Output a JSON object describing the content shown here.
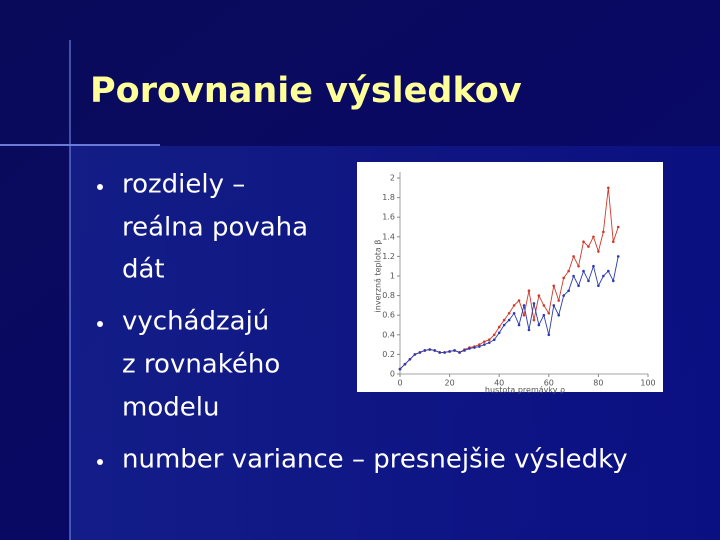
{
  "title": "Porovnanie výsledkov",
  "bullets": [
    [
      "rozdiely –",
      "reálna povaha",
      "dát"
    ],
    [
      "vychádzajú",
      "z rovnakého",
      "modelu"
    ],
    [
      "number variance – presnejšie výsledky"
    ]
  ],
  "chart_data": {
    "type": "line",
    "xlabel": "hustota premávky ρ",
    "ylabel": "inverzná teplota β",
    "x": [
      0,
      2,
      4,
      6,
      8,
      10,
      12,
      14,
      16,
      18,
      20,
      22,
      24,
      26,
      28,
      30,
      32,
      34,
      36,
      38,
      40,
      42,
      44,
      46,
      48,
      50,
      52,
      54,
      56,
      58,
      60,
      62,
      64,
      66,
      68,
      70,
      72,
      74,
      76,
      78,
      80,
      82,
      84,
      86,
      88
    ],
    "series": [
      {
        "color": "#d03a2a",
        "values": [
          0.05,
          0.1,
          0.15,
          0.2,
          0.22,
          0.24,
          0.25,
          0.24,
          0.22,
          0.22,
          0.23,
          0.24,
          0.22,
          0.25,
          0.27,
          0.28,
          0.3,
          0.33,
          0.35,
          0.4,
          0.48,
          0.55,
          0.62,
          0.7,
          0.75,
          0.6,
          0.85,
          0.55,
          0.8,
          0.7,
          0.62,
          0.9,
          0.75,
          0.98,
          1.05,
          1.2,
          1.1,
          1.35,
          1.3,
          1.4,
          1.25,
          1.45,
          1.9,
          1.35,
          1.5
        ]
      },
      {
        "color": "#2a3ab0",
        "values": [
          0.05,
          0.1,
          0.15,
          0.2,
          0.22,
          0.24,
          0.25,
          0.24,
          0.22,
          0.22,
          0.23,
          0.24,
          0.22,
          0.24,
          0.26,
          0.27,
          0.28,
          0.3,
          0.32,
          0.35,
          0.42,
          0.5,
          0.55,
          0.62,
          0.5,
          0.7,
          0.45,
          0.72,
          0.5,
          0.6,
          0.4,
          0.7,
          0.6,
          0.8,
          0.85,
          1.0,
          0.9,
          1.05,
          0.95,
          1.1,
          0.9,
          1.0,
          1.05,
          0.95,
          1.2
        ]
      }
    ],
    "xlim": [
      0,
      100
    ],
    "xticks": [
      0,
      20,
      40,
      60,
      80,
      100
    ],
    "ylim": [
      0,
      2
    ],
    "yticks": [
      0,
      0.2,
      0.4,
      0.6,
      0.8,
      1,
      1.2,
      1.4,
      1.6,
      1.8,
      2
    ]
  }
}
